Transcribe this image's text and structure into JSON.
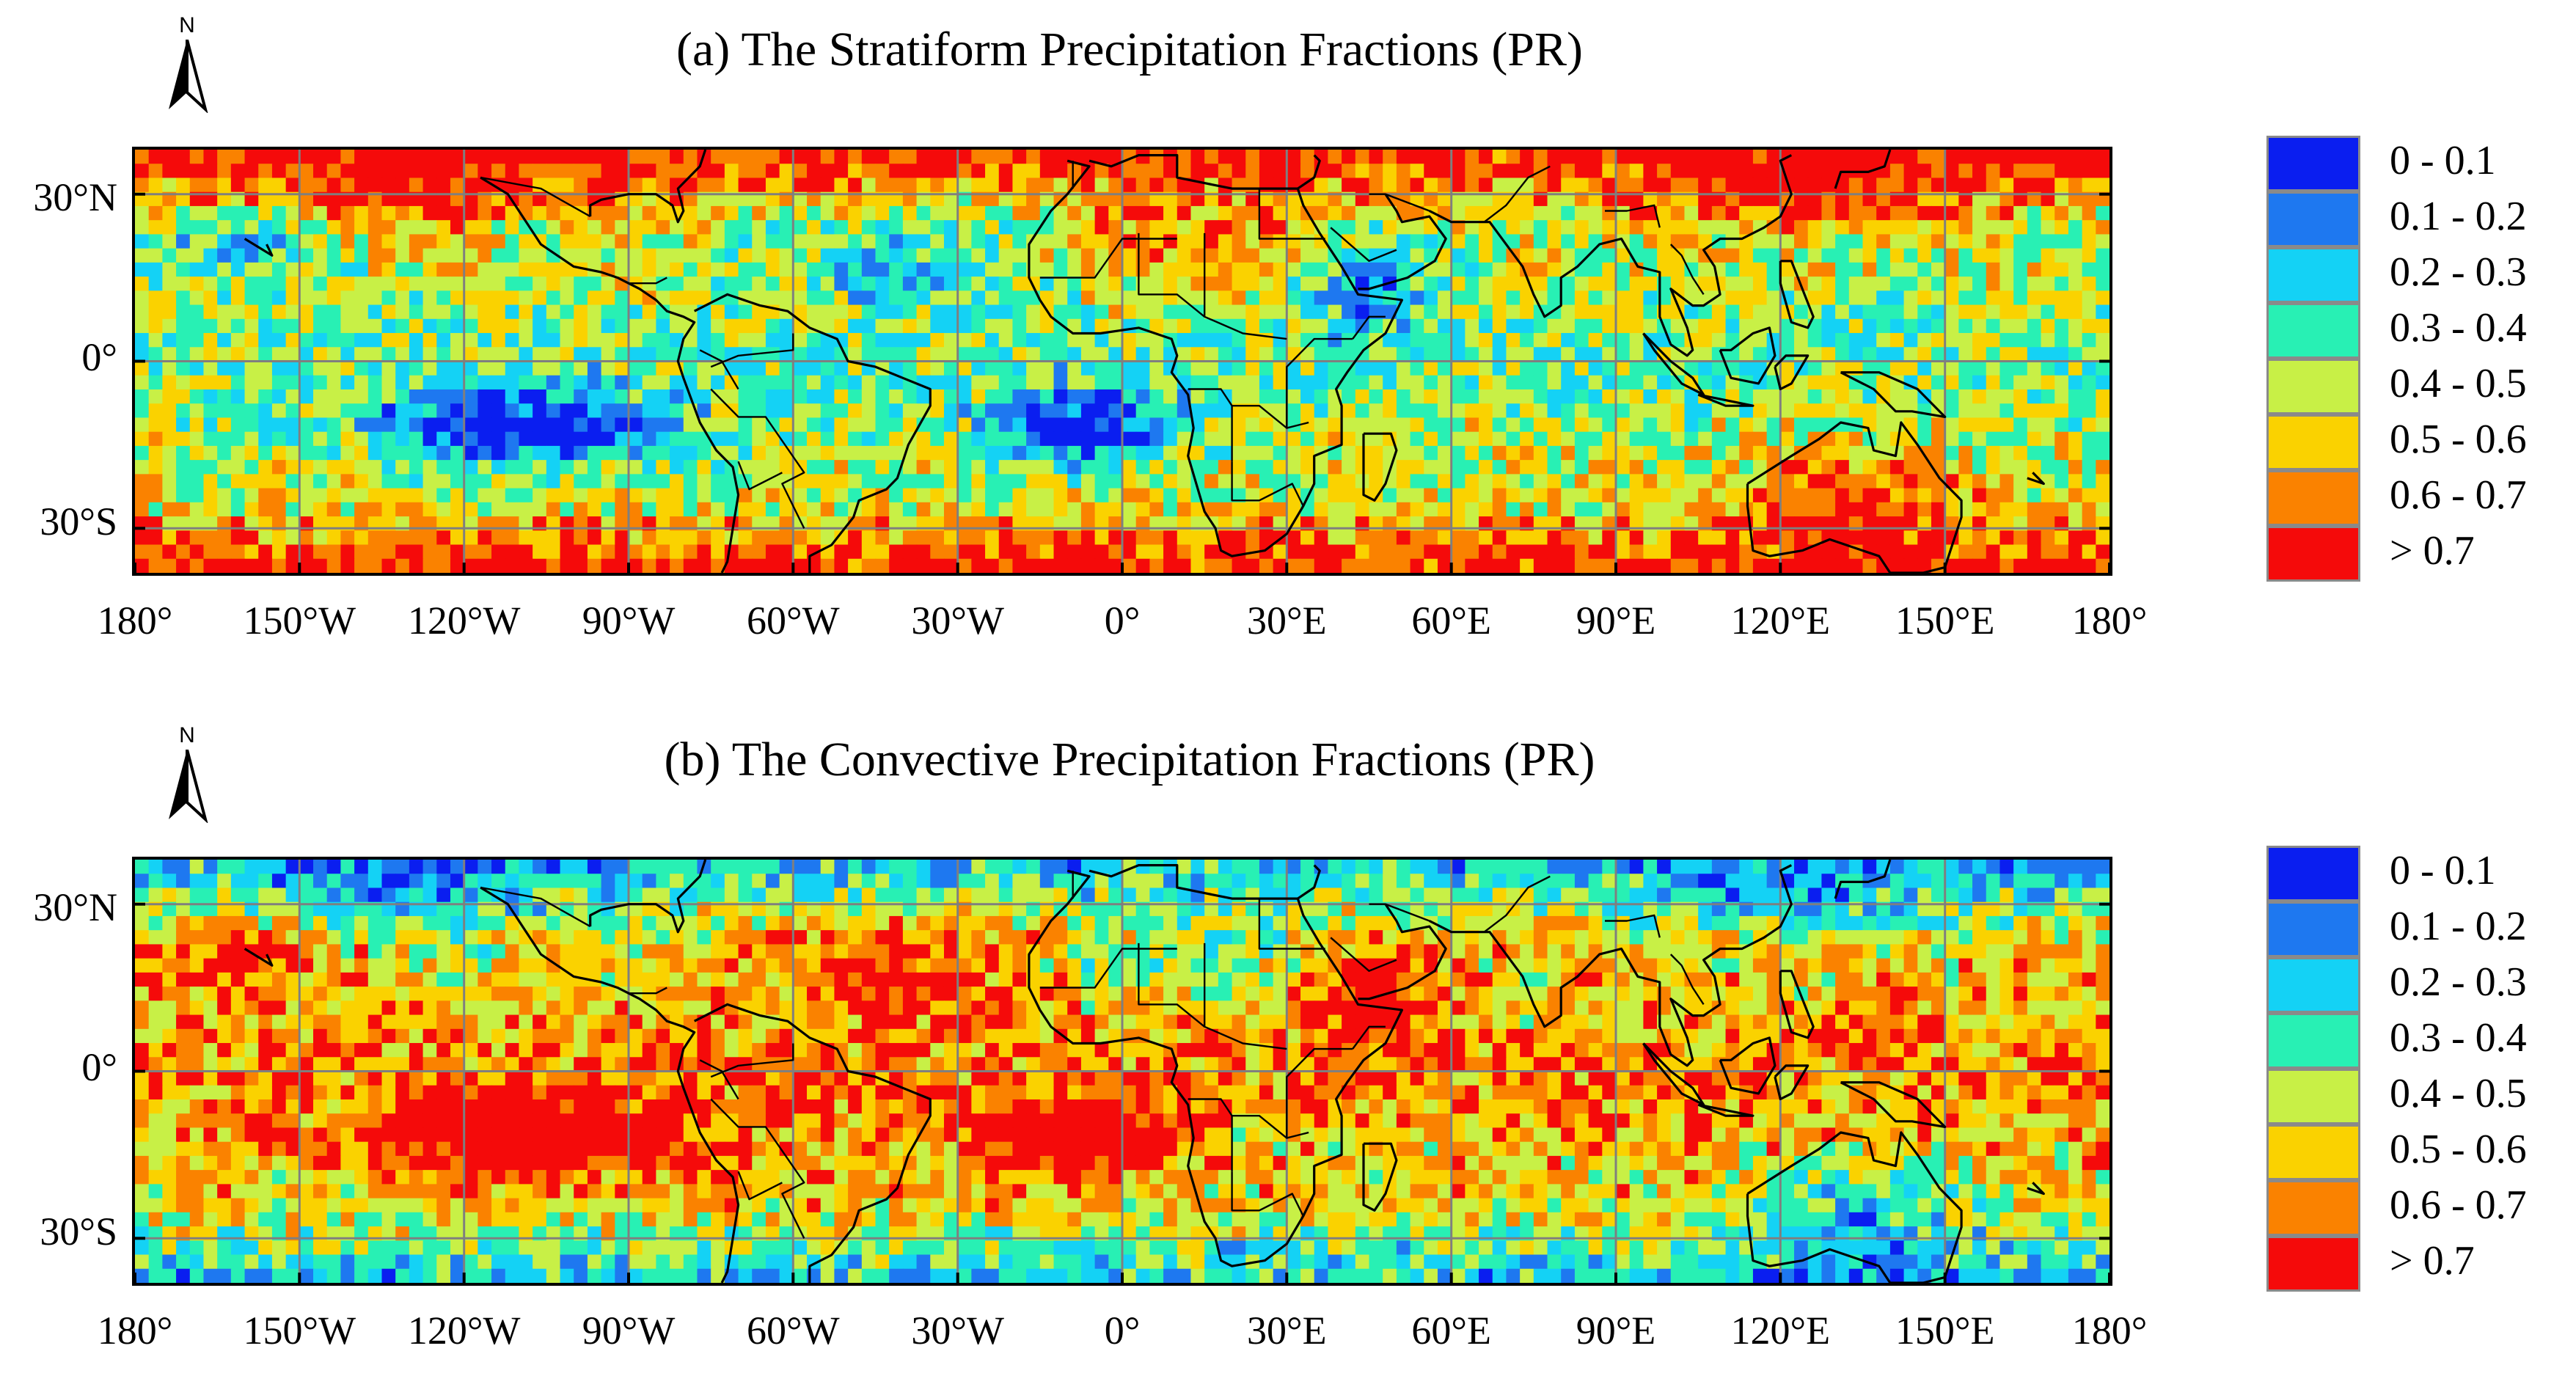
{
  "legend": {
    "classes": [
      {
        "label": "0 - 0.1",
        "color": "#0a1ef0"
      },
      {
        "label": "0.1 - 0.2",
        "color": "#1e78f0"
      },
      {
        "label": "0.2 - 0.3",
        "color": "#14d2f5"
      },
      {
        "label": "0.3 - 0.4",
        "color": "#28f0b4"
      },
      {
        "label": "0.4 - 0.5",
        "color": "#c8f046"
      },
      {
        "label": "0.5 - 0.6",
        "color": "#fad200"
      },
      {
        "label": "0.6 - 0.7",
        "color": "#fa8200"
      },
      {
        "label": "> 0.7",
        "color": "#f50a0a"
      }
    ]
  },
  "axes": {
    "lat_ticks": [
      "30°N",
      "0°",
      "30°S"
    ],
    "lon_ticks": [
      "180°",
      "150°W",
      "120°W",
      "90°W",
      "60°W",
      "30°W",
      "0°",
      "30°E",
      "60°E",
      "90°E",
      "120°E",
      "150°E",
      "180°"
    ]
  },
  "panels": [
    {
      "title": "(a) The Stratiform Precipitation Fractions (PR)",
      "north_label": "N"
    },
    {
      "title": "(b) The Convective Precipitation Fractions (PR)",
      "north_label": "N"
    }
  ],
  "chart_data": [
    {
      "type": "heatmap",
      "title": "(a) The Stratiform Precipitation Fractions (PR)",
      "variable": "stratiform",
      "x_range": [
        -180,
        180
      ],
      "y_range": [
        -38,
        38
      ],
      "xticks": [
        -180,
        -150,
        -120,
        -90,
        -60,
        -30,
        0,
        30,
        60,
        90,
        120,
        150,
        180
      ],
      "yticks": [
        30,
        0,
        -30
      ],
      "legend": [
        "0 - 0.1",
        "0.1 - 0.2",
        "0.2 - 0.3",
        "0.3 - 0.4",
        "0.4 - 0.5",
        "0.5 - 0.6",
        "0.6 - 0.7",
        "> 0.7"
      ]
    },
    {
      "type": "heatmap",
      "title": "(b) The Convective Precipitation Fractions (PR)",
      "variable": "convective",
      "x_range": [
        -180,
        180
      ],
      "y_range": [
        -38,
        38
      ],
      "xticks": [
        -180,
        -150,
        -120,
        -90,
        -60,
        -30,
        0,
        30,
        60,
        90,
        120,
        150,
        180
      ],
      "yticks": [
        30,
        0,
        -30
      ],
      "legend": [
        "0 - 0.1",
        "0.1 - 0.2",
        "0.2 - 0.3",
        "0.3 - 0.4",
        "0.4 - 0.5",
        "0.5 - 0.6",
        "0.6 - 0.7",
        "> 0.7"
      ]
    }
  ]
}
